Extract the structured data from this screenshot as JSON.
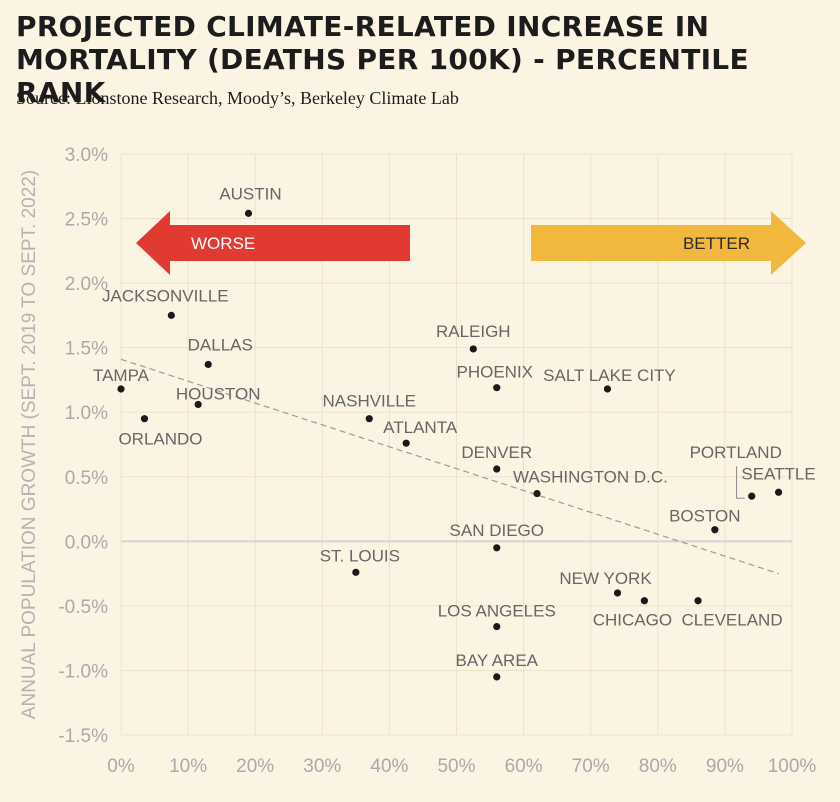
{
  "title": "PROJECTED CLIMATE-RELATED INCREASE IN MORTALITY (DEATHS PER 100K) - PERCENTILE RANK",
  "subtitle": "Source: Lionstone Research, Moody’s, Berkeley Climate Lab",
  "colors": {
    "background": "#fcf4e3",
    "grid": "#ece2cc",
    "zero_line": "#d4d4d4",
    "point": "#1a1a1a",
    "trend": "#9a9a9a",
    "worse_arrow": "#e03a33",
    "better_arrow": "#f2b83e"
  },
  "arrows": {
    "worse_label": "WORSE",
    "better_label": "BETTER"
  },
  "chart_data": {
    "type": "scatter",
    "title": "PROJECTED CLIMATE-RELATED INCREASE IN MORTALITY (DEATHS PER 100K) - PERCENTILE RANK",
    "xlabel": "",
    "ylabel": "ANNUAL POPULATION GROWTH (SEPT. 2019 TO SEPT. 2022)",
    "xlim": [
      0,
      100
    ],
    "ylim": [
      -1.5,
      3.0
    ],
    "x_ticks": [
      0,
      10,
      20,
      30,
      40,
      50,
      60,
      70,
      80,
      90,
      100
    ],
    "x_tick_labels": [
      "0%",
      "10%",
      "20%",
      "30%",
      "40%",
      "50%",
      "60%",
      "70%",
      "80%",
      "90%",
      "100%"
    ],
    "y_ticks": [
      3.0,
      2.5,
      2.0,
      1.5,
      1.0,
      0.5,
      0.0,
      -0.5,
      -1.0,
      -1.5
    ],
    "y_tick_labels": [
      "3.0%",
      "2.5%",
      "2.0%",
      "1.5%",
      "1.0%",
      "0.5%",
      "0.0%",
      "-0.5%",
      "-1.0%",
      "-1.5%"
    ],
    "grid": true,
    "trendline": {
      "x": [
        0,
        98
      ],
      "y": [
        1.41,
        -0.25
      ]
    },
    "points": [
      {
        "label": "AUSTIN",
        "x": 19,
        "y": 2.54
      },
      {
        "label": "JACKSONVILLE",
        "x": 7.5,
        "y": 1.75
      },
      {
        "label": "DALLAS",
        "x": 13,
        "y": 1.37
      },
      {
        "label": "TAMPA",
        "x": 0,
        "y": 1.18
      },
      {
        "label": "HOUSTON",
        "x": 11.5,
        "y": 1.06
      },
      {
        "label": "ORLANDO",
        "x": 3.5,
        "y": 0.95
      },
      {
        "label": "NASHVILLE",
        "x": 37,
        "y": 0.95
      },
      {
        "label": "ATLANTA",
        "x": 42.5,
        "y": 0.76
      },
      {
        "label": "RALEIGH",
        "x": 52.5,
        "y": 1.49
      },
      {
        "label": "PHOENIX",
        "x": 56,
        "y": 1.19
      },
      {
        "label": "SALT LAKE CITY",
        "x": 72.5,
        "y": 1.18
      },
      {
        "label": "DENVER",
        "x": 56,
        "y": 0.56
      },
      {
        "label": "WASHINGTON D.C.",
        "x": 62,
        "y": 0.37
      },
      {
        "label": "PORTLAND",
        "x": 94,
        "y": 0.35
      },
      {
        "label": "SEATTLE",
        "x": 98,
        "y": 0.38
      },
      {
        "label": "BOSTON",
        "x": 88.5,
        "y": 0.09
      },
      {
        "label": "SAN DIEGO",
        "x": 56,
        "y": -0.05
      },
      {
        "label": "ST. LOUIS",
        "x": 35,
        "y": -0.24
      },
      {
        "label": "NEW YORK",
        "x": 74,
        "y": -0.4
      },
      {
        "label": "CHICAGO",
        "x": 78,
        "y": -0.46
      },
      {
        "label": "CLEVELAND",
        "x": 86,
        "y": -0.46
      },
      {
        "label": "LOS ANGELES",
        "x": 56,
        "y": -0.66
      },
      {
        "label": "BAY AREA",
        "x": 56,
        "y": -1.05
      }
    ]
  }
}
